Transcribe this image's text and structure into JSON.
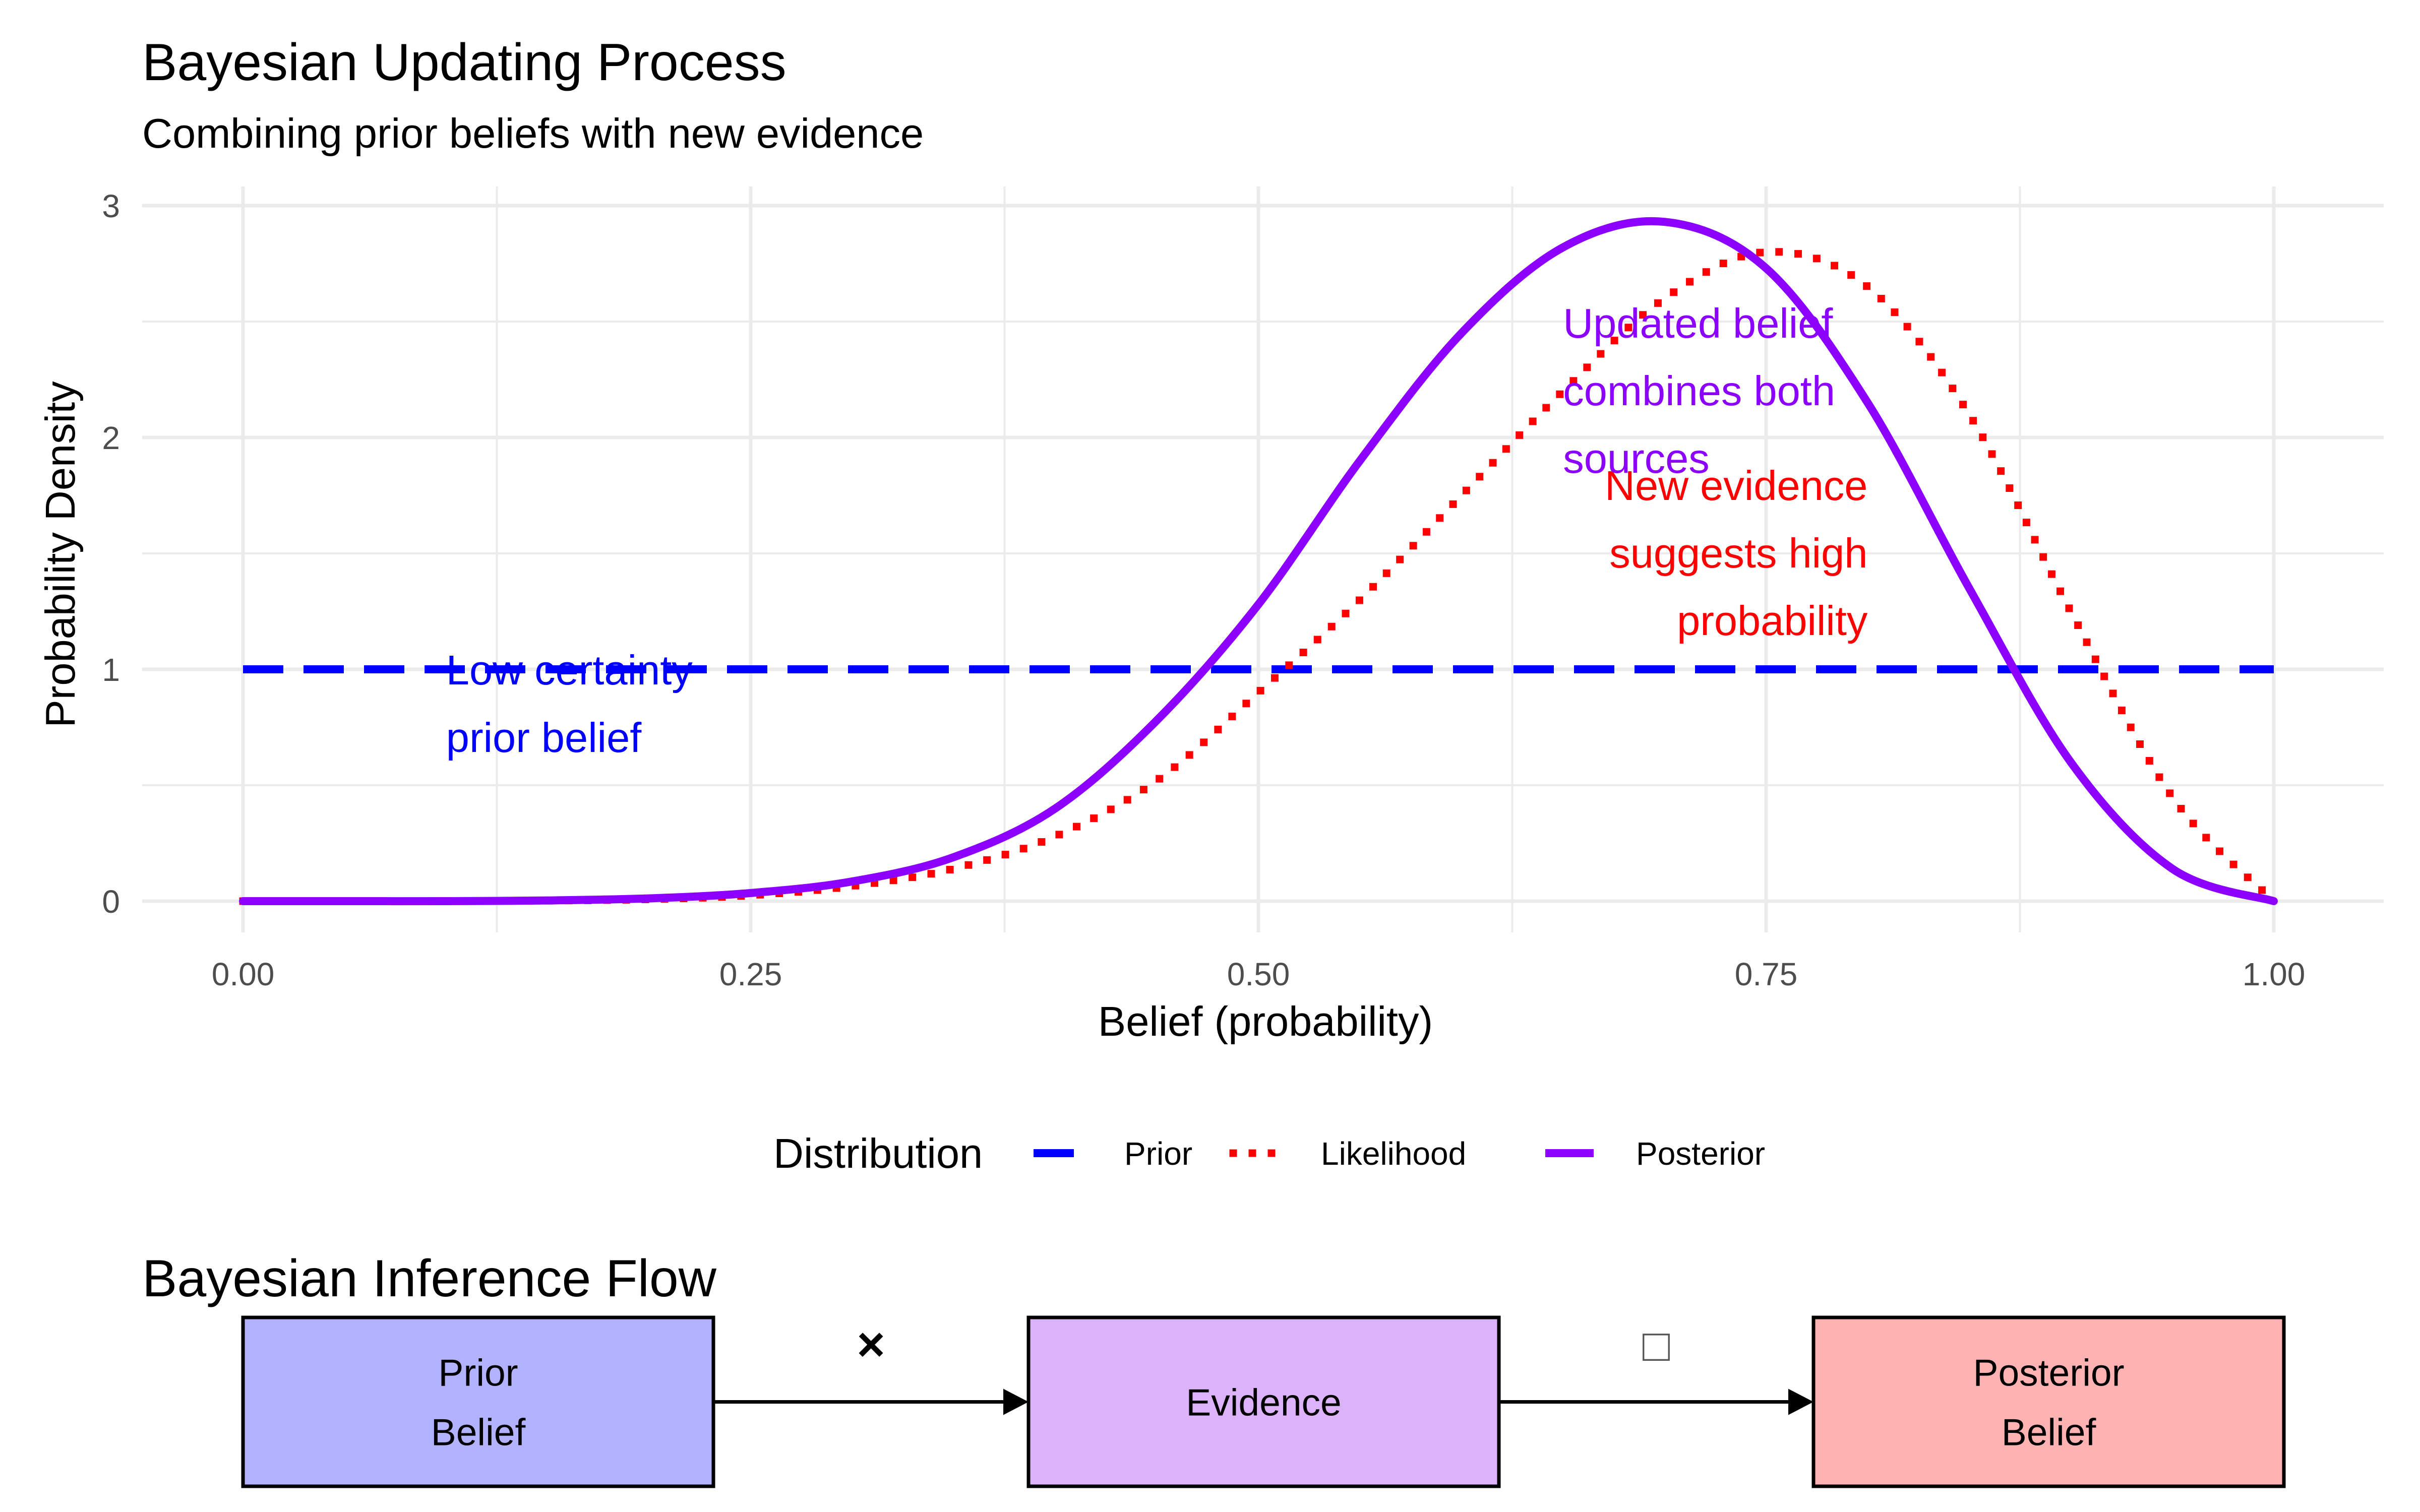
{
  "chart_data": {
    "type": "line",
    "title": "Bayesian Updating Process",
    "subtitle": "Combining prior beliefs with new evidence",
    "xlabel": "Belief (probability)",
    "ylabel": "Probability Density",
    "xlim": [
      0,
      1
    ],
    "ylim": [
      0,
      3
    ],
    "x_ticks": [
      "0.00",
      "0.25",
      "0.50",
      "0.75",
      "1.00"
    ],
    "y_ticks": [
      "0",
      "1",
      "2",
      "3"
    ],
    "grid": true,
    "legend": {
      "title": "Distribution",
      "placement": "bottom"
    },
    "series": [
      {
        "name": "Prior",
        "color": "#0000ff",
        "linestyle": "dashed",
        "x": [
          0.0,
          0.1,
          0.2,
          0.3,
          0.4,
          0.5,
          0.6,
          0.7,
          0.8,
          0.9,
          1.0
        ],
        "y": [
          1,
          1,
          1,
          1,
          1,
          1,
          1,
          1,
          1,
          1,
          1
        ]
      },
      {
        "name": "Likelihood",
        "color": "#ff0000",
        "linestyle": "dotted",
        "x": [
          0.0,
          0.05,
          0.1,
          0.15,
          0.2,
          0.25,
          0.3,
          0.35,
          0.4,
          0.45,
          0.5,
          0.55,
          0.6,
          0.65,
          0.7,
          0.75,
          0.8,
          0.85,
          0.9,
          0.95,
          1.0
        ],
        "y": [
          0.0,
          0.0,
          0.0,
          0.002,
          0.008,
          0.025,
          0.065,
          0.14,
          0.28,
          0.52,
          0.9,
          1.3,
          1.75,
          2.2,
          2.6,
          2.8,
          2.65,
          2.1,
          1.25,
          0.45,
          0.0
        ]
      },
      {
        "name": "Posterior",
        "color": "#8b00ff",
        "linestyle": "solid",
        "x": [
          0.0,
          0.05,
          0.1,
          0.15,
          0.2,
          0.25,
          0.3,
          0.35,
          0.4,
          0.45,
          0.5,
          0.55,
          0.6,
          0.65,
          0.7,
          0.75,
          0.8,
          0.85,
          0.9,
          0.95,
          1.0
        ],
        "y": [
          0.0,
          0.0,
          0.0,
          0.003,
          0.012,
          0.035,
          0.085,
          0.19,
          0.4,
          0.78,
          1.28,
          1.9,
          2.45,
          2.82,
          2.93,
          2.73,
          2.15,
          1.35,
          0.6,
          0.14,
          0.0
        ]
      }
    ],
    "annotations": [
      {
        "lines": [
          "Low certainty",
          "prior belief"
        ],
        "x": 0.1,
        "y": 0.85,
        "color": "#0000ff",
        "align": "left"
      },
      {
        "lines": [
          "New evidence",
          "suggests high",
          "probability"
        ],
        "x": 0.8,
        "y": 1.5,
        "color": "#ff0000",
        "align": "right"
      },
      {
        "lines": [
          "Updated belief",
          "combines both",
          "sources"
        ],
        "x": 0.65,
        "y": 2.2,
        "color": "#8b00ff",
        "align": "left"
      }
    ]
  },
  "flow": {
    "title": "Bayesian Inference Flow",
    "boxes": [
      {
        "lines": [
          "Prior",
          "Belief"
        ],
        "fill": "#b2b2ff"
      },
      {
        "lines": [
          "Evidence"
        ],
        "fill": "#dcb2f8"
      },
      {
        "lines": [
          "Posterior",
          "Belief"
        ],
        "fill": "#ffb2b2"
      }
    ],
    "operators": [
      "×",
      "□"
    ]
  }
}
